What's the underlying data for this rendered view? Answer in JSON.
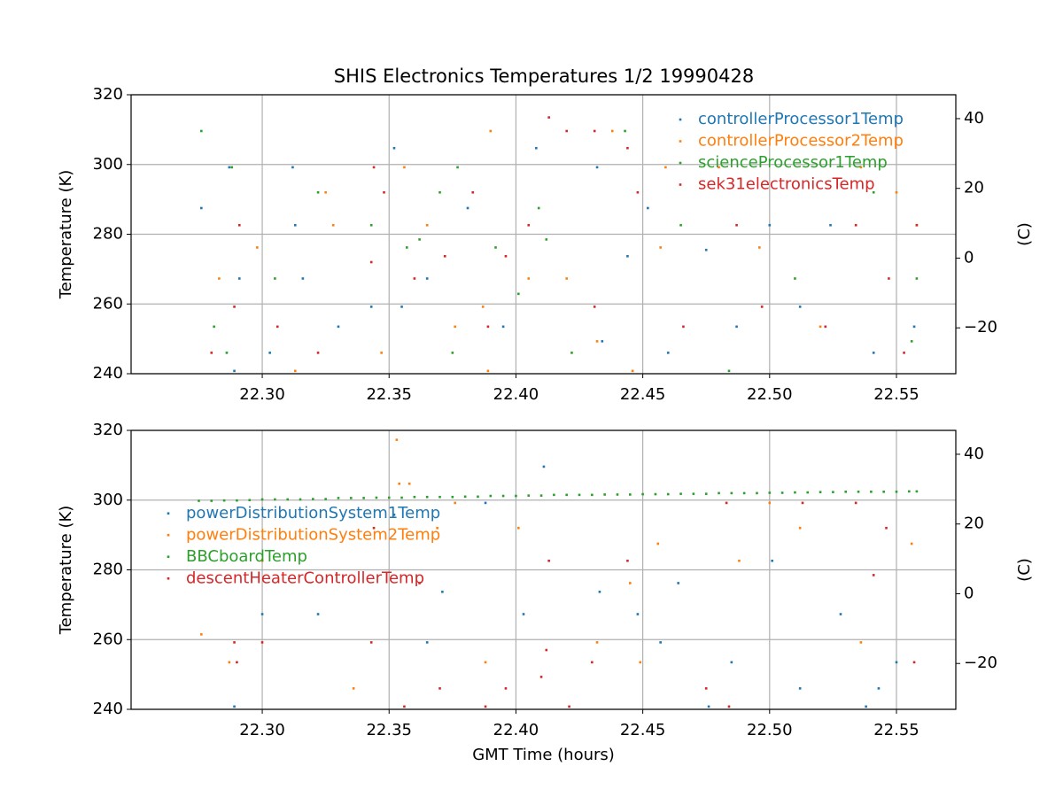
{
  "chart_data": [
    {
      "type": "scatter",
      "title": "SHIS Electronics Temperatures 1/2 19990428",
      "ylabel": "Temperature (K)",
      "y2label": "(C)",
      "xlim": [
        22.2483,
        22.5734
      ],
      "ylim": [
        240,
        320
      ],
      "y2lim": [
        -33.15,
        46.85
      ],
      "xticks": [
        {
          "value": 22.3,
          "label": "22.30"
        },
        {
          "value": 22.35,
          "label": "22.35"
        },
        {
          "value": 22.4,
          "label": "22.40"
        },
        {
          "value": 22.45,
          "label": "22.45"
        },
        {
          "value": 22.5,
          "label": "22.50"
        },
        {
          "value": 22.55,
          "label": "22.55"
        }
      ],
      "yticks": [
        240,
        260,
        280,
        300,
        320
      ],
      "y2ticks": [
        {
          "value": -20,
          "label": "−20"
        },
        0,
        20,
        40
      ],
      "grid": true,
      "legend": "upper right",
      "series": [
        {
          "name": "controllerProcessor1Temp",
          "color": "#1f77b4",
          "x": [
            22.276,
            22.287,
            22.289,
            22.291,
            22.303,
            22.312,
            22.313,
            22.316,
            22.33,
            22.343,
            22.352,
            22.355,
            22.365,
            22.381,
            22.395,
            22.408,
            22.432,
            22.434,
            22.444,
            22.452,
            22.46,
            22.475,
            22.487,
            22.5,
            22.512,
            22.524,
            22.541,
            22.557
          ],
          "values": [
            287.5,
            299.2,
            240.8,
            267.3,
            246,
            299.2,
            282.6,
            267.3,
            253.5,
            259.2,
            304.7,
            259.2,
            267.3,
            287.5,
            253.5,
            304.7,
            299.2,
            249.3,
            273.7,
            287.5,
            246,
            275.5,
            253.5,
            282.6,
            259.2,
            282.6,
            246,
            253.5
          ]
        },
        {
          "name": "controllerProcessor2Temp",
          "color": "#ff7f0e",
          "x": [
            22.283,
            22.298,
            22.313,
            22.325,
            22.328,
            22.347,
            22.356,
            22.365,
            22.376,
            22.387,
            22.389,
            22.39,
            22.405,
            22.42,
            22.432,
            22.438,
            22.446,
            22.457,
            22.459,
            22.48,
            22.496,
            22.52,
            22.536,
            22.55,
            22.558
          ],
          "values": [
            267.3,
            276.2,
            240.8,
            292,
            282.6,
            246,
            299.2,
            282.6,
            253.5,
            259.2,
            240.8,
            309.6,
            267.3,
            267.3,
            249.3,
            309.6,
            240.8,
            276.2,
            299.2,
            299.2,
            276.2,
            253.5,
            299.2,
            292,
            282.6
          ]
        },
        {
          "name": "scienceProcessor1Temp",
          "color": "#2ca02c",
          "x": [
            22.276,
            22.281,
            22.286,
            22.288,
            22.305,
            22.322,
            22.343,
            22.357,
            22.362,
            22.37,
            22.375,
            22.377,
            22.392,
            22.401,
            22.409,
            22.412,
            22.422,
            22.443,
            22.465,
            22.484,
            22.51,
            22.541,
            22.556,
            22.558
          ],
          "values": [
            309.6,
            253.5,
            246,
            299.2,
            267.3,
            292,
            282.6,
            276.2,
            278.5,
            292,
            246,
            299.2,
            276.2,
            262.9,
            287.5,
            278.5,
            246,
            309.6,
            282.6,
            240.8,
            267.3,
            292,
            249.3,
            267.3
          ]
        },
        {
          "name": "sek31electronicsTemp",
          "color": "#d62728",
          "x": [
            22.28,
            22.289,
            22.291,
            22.306,
            22.322,
            22.343,
            22.344,
            22.348,
            22.36,
            22.372,
            22.383,
            22.389,
            22.396,
            22.405,
            22.413,
            22.42,
            22.431,
            22.431,
            22.444,
            22.448,
            22.466,
            22.487,
            22.497,
            22.522,
            22.534,
            22.547,
            22.553,
            22.558
          ],
          "values": [
            246,
            259.2,
            282.6,
            253.5,
            246,
            272,
            299.2,
            292,
            267.3,
            273.7,
            292,
            253.5,
            273.7,
            282.6,
            313.5,
            309.6,
            309.6,
            259.2,
            304.7,
            292,
            253.5,
            282.6,
            259.2,
            253.5,
            282.6,
            267.3,
            246,
            282.6
          ]
        }
      ]
    },
    {
      "type": "scatter",
      "xlabel": "GMT Time (hours)",
      "ylabel": "Temperature (K)",
      "y2label": "(C)",
      "xlim": [
        22.2483,
        22.5734
      ],
      "ylim": [
        240,
        320
      ],
      "y2lim": [
        -33.15,
        46.85
      ],
      "xticks": [
        {
          "value": 22.3,
          "label": "22.30"
        },
        {
          "value": 22.35,
          "label": "22.35"
        },
        {
          "value": 22.4,
          "label": "22.40"
        },
        {
          "value": 22.45,
          "label": "22.45"
        },
        {
          "value": 22.5,
          "label": "22.50"
        },
        {
          "value": 22.55,
          "label": "22.55"
        }
      ],
      "yticks": [
        240,
        260,
        280,
        300,
        320
      ],
      "y2ticks": [
        {
          "value": -20,
          "label": "−20"
        },
        0,
        20,
        40
      ],
      "grid": true,
      "legend": "center left",
      "series": [
        {
          "name": "powerDistributionSystem1Temp",
          "color": "#1f77b4",
          "x": [
            22.289,
            22.3,
            22.322,
            22.352,
            22.365,
            22.371,
            22.388,
            22.403,
            22.411,
            22.433,
            22.448,
            22.457,
            22.464,
            22.476,
            22.485,
            22.501,
            22.512,
            22.528,
            22.538,
            22.543,
            22.55
          ],
          "values": [
            240.8,
            267.3,
            267.3,
            295.8,
            259.2,
            273.7,
            299.2,
            267.3,
            309.6,
            273.7,
            267.3,
            259.2,
            276.2,
            240.8,
            253.5,
            282.6,
            246,
            267.3,
            240.8,
            246,
            253.5
          ]
        },
        {
          "name": "powerDistributionSystem2Temp",
          "color": "#ff7f0e",
          "x": [
            22.276,
            22.287,
            22.3,
            22.336,
            22.353,
            22.354,
            22.358,
            22.369,
            22.376,
            22.388,
            22.401,
            22.432,
            22.445,
            22.449,
            22.456,
            22.488,
            22.5,
            22.512,
            22.536,
            22.556
          ],
          "values": [
            261.5,
            253.5,
            282.6,
            246,
            317.3,
            304.7,
            304.7,
            292,
            299.2,
            253.5,
            292,
            259.2,
            276.2,
            253.5,
            287.5,
            282.6,
            299.2,
            292,
            259.2,
            287.5
          ]
        },
        {
          "name": "BBCboardTemp",
          "color": "#2ca02c",
          "x": [
            22.275,
            22.28,
            22.285,
            22.29,
            22.295,
            22.3,
            22.305,
            22.31,
            22.315,
            22.32,
            22.325,
            22.33,
            22.335,
            22.34,
            22.345,
            22.35,
            22.355,
            22.36,
            22.365,
            22.37,
            22.375,
            22.38,
            22.385,
            22.39,
            22.395,
            22.4,
            22.405,
            22.41,
            22.415,
            22.42,
            22.425,
            22.43,
            22.435,
            22.44,
            22.445,
            22.45,
            22.455,
            22.46,
            22.465,
            22.47,
            22.475,
            22.48,
            22.485,
            22.49,
            22.495,
            22.5,
            22.505,
            22.51,
            22.515,
            22.52,
            22.525,
            22.53,
            22.535,
            22.54,
            22.545,
            22.55,
            22.555,
            22.558
          ],
          "values": [
            299.8,
            299.8,
            299.9,
            299.9,
            300,
            300.2,
            300.2,
            300.2,
            300.2,
            300.3,
            300.3,
            300.6,
            300.6,
            300.6,
            300.7,
            300.7,
            300.7,
            300.9,
            300.9,
            300.9,
            300.9,
            301,
            301,
            301.2,
            301.2,
            301.2,
            301.3,
            301.3,
            301.5,
            301.5,
            301.5,
            301.5,
            301.6,
            301.6,
            301.6,
            301.7,
            301.7,
            301.7,
            301.8,
            301.8,
            301.8,
            302,
            302,
            302,
            302,
            302.1,
            302.1,
            302.2,
            302.2,
            302.3,
            302.3,
            302.4,
            302.4,
            302.4,
            302.4,
            302.4,
            302.5,
            302.5
          ]
        },
        {
          "name": "descentHeaterControllerTemp",
          "color": "#d62728",
          "x": [
            22.289,
            22.29,
            22.3,
            22.343,
            22.344,
            22.356,
            22.362,
            22.37,
            22.388,
            22.396,
            22.41,
            22.412,
            22.413,
            22.421,
            22.43,
            22.444,
            22.475,
            22.484,
            22.483,
            22.513,
            22.534,
            22.541,
            22.546,
            22.557
          ],
          "values": [
            259.2,
            253.5,
            259.2,
            259.2,
            292,
            240.8,
            276.2,
            246,
            240.8,
            246,
            249.3,
            257,
            282.6,
            240.8,
            253.5,
            282.6,
            246,
            240.8,
            299.2,
            299.2,
            299.2,
            278.5,
            292,
            253.5
          ]
        }
      ]
    }
  ]
}
